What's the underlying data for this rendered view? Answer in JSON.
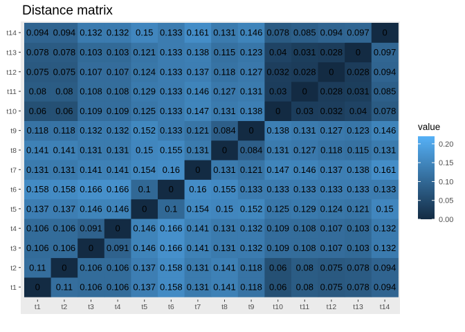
{
  "chart_data": {
    "type": "heatmap",
    "title": "Distance matrix",
    "xlabel": "",
    "ylabel": "",
    "x_categories": [
      "t1",
      "t2",
      "t3",
      "t4",
      "t5",
      "t6",
      "t7",
      "t8",
      "t9",
      "t10",
      "t11",
      "t12",
      "t13",
      "t14"
    ],
    "y_categories": [
      "t1",
      "t2",
      "t3",
      "t4",
      "t5",
      "t6",
      "t7",
      "t8",
      "t9",
      "t10",
      "t11",
      "t12",
      "t13",
      "t14"
    ],
    "legend": {
      "title": "value",
      "ticks": [
        0.0,
        0.05,
        0.1,
        0.15,
        0.2
      ],
      "range": [
        0,
        0.22
      ],
      "placement": "right"
    },
    "color_low": "#132b43",
    "color_high": "#56b1f7",
    "panel_background": "#ebebeb",
    "values": [
      [
        0,
        0.11,
        0.106,
        0.106,
        0.137,
        0.158,
        0.131,
        0.141,
        0.118,
        0.06,
        0.08,
        0.075,
        0.078,
        0.094
      ],
      [
        0.11,
        0,
        0.106,
        0.106,
        0.137,
        0.158,
        0.131,
        0.141,
        0.118,
        0.06,
        0.08,
        0.075,
        0.078,
        0.094
      ],
      [
        0.106,
        0.106,
        0,
        0.091,
        0.146,
        0.166,
        0.141,
        0.131,
        0.132,
        0.109,
        0.108,
        0.107,
        0.103,
        0.132
      ],
      [
        0.106,
        0.106,
        0.091,
        0,
        0.146,
        0.166,
        0.141,
        0.131,
        0.132,
        0.109,
        0.108,
        0.107,
        0.103,
        0.132
      ],
      [
        0.137,
        0.137,
        0.146,
        0.146,
        0,
        0.1,
        0.154,
        0.15,
        0.152,
        0.125,
        0.129,
        0.124,
        0.121,
        0.15
      ],
      [
        0.158,
        0.158,
        0.166,
        0.166,
        0.1,
        0,
        0.16,
        0.155,
        0.133,
        0.133,
        0.133,
        0.133,
        0.133,
        0.133
      ],
      [
        0.131,
        0.131,
        0.141,
        0.141,
        0.154,
        0.16,
        0,
        0.131,
        0.121,
        0.147,
        0.146,
        0.137,
        0.138,
        0.161
      ],
      [
        0.141,
        0.141,
        0.131,
        0.131,
        0.15,
        0.155,
        0.131,
        0,
        0.084,
        0.131,
        0.127,
        0.118,
        0.115,
        0.131
      ],
      [
        0.118,
        0.118,
        0.132,
        0.132,
        0.152,
        0.133,
        0.121,
        0.084,
        0,
        0.138,
        0.131,
        0.127,
        0.123,
        0.146
      ],
      [
        0.06,
        0.06,
        0.109,
        0.109,
        0.125,
        0.133,
        0.147,
        0.131,
        0.138,
        0,
        0.03,
        0.032,
        0.04,
        0.078
      ],
      [
        0.08,
        0.08,
        0.108,
        0.108,
        0.129,
        0.133,
        0.146,
        0.127,
        0.131,
        0.03,
        0,
        0.028,
        0.031,
        0.085
      ],
      [
        0.075,
        0.075,
        0.107,
        0.107,
        0.124,
        0.133,
        0.137,
        0.118,
        0.127,
        0.032,
        0.028,
        0,
        0.028,
        0.094
      ],
      [
        0.078,
        0.078,
        0.103,
        0.103,
        0.121,
        0.133,
        0.138,
        0.115,
        0.123,
        0.04,
        0.031,
        0.028,
        0,
        0.097
      ],
      [
        0.094,
        0.094,
        0.132,
        0.132,
        0.15,
        0.133,
        0.161,
        0.131,
        0.146,
        0.078,
        0.085,
        0.094,
        0.097,
        0
      ]
    ]
  }
}
